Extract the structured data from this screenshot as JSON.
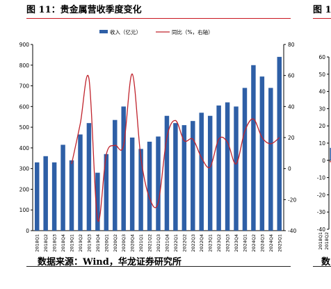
{
  "figure": {
    "title": "图 11：贵金属营收季度变化",
    "source": "数据来源：Wind，华龙证券研究所"
  },
  "next_figure": {
    "title_fragment": "图 1",
    "source_fragment": "数",
    "y_ticks": [
      "60",
      "50",
      "40",
      "30",
      "20",
      "10",
      "0",
      "-10",
      "-20",
      "-30",
      "-40"
    ],
    "x_ticks": [
      "2018Q1",
      "2018Q2"
    ],
    "bar_color": "#2e5fa6",
    "line_color": "#c0232c"
  },
  "chart_data": {
    "type": "bar+line",
    "categories": [
      "2018Q1",
      "2018Q2",
      "2018Q3",
      "2018Q4",
      "2019Q1",
      "2019Q2",
      "2019Q3",
      "2019Q4",
      "2020Q1",
      "2020Q2",
      "2020Q3",
      "2020Q4",
      "2021Q1",
      "2021Q2",
      "2021Q3",
      "2021Q4",
      "2022Q1",
      "2022Q2",
      "2022Q3",
      "2022Q4",
      "2023Q1",
      "2023Q2",
      "2023Q3",
      "2023Q4",
      "2024Q1",
      "2024Q2",
      "2024Q3",
      "2024Q4",
      "2025Q1"
    ],
    "series": [
      {
        "name": "收入（亿元）",
        "type": "bar",
        "axis": "left",
        "color": "#2e5fa6",
        "values": [
          330,
          360,
          330,
          415,
          340,
          465,
          520,
          280,
          370,
          535,
          600,
          450,
          395,
          430,
          455,
          555,
          520,
          510,
          530,
          570,
          555,
          605,
          620,
          600,
          690,
          800,
          745,
          690,
          840
        ]
      },
      {
        "name": "同比（%，右轴）",
        "type": "line",
        "axis": "right",
        "color": "#c0232c",
        "values": [
          null,
          null,
          null,
          null,
          3,
          29,
          58,
          -33,
          9,
          15,
          15,
          61,
          7,
          -19,
          -22,
          20,
          31,
          18,
          19,
          7,
          1,
          19,
          17,
          3,
          24,
          32,
          20,
          16,
          20
        ]
      }
    ],
    "left_axis": {
      "ylim": [
        0,
        900
      ],
      "ticks": [
        "0",
        "100",
        "200",
        "300",
        "400",
        "500",
        "600",
        "700",
        "800",
        "900"
      ]
    },
    "right_axis": {
      "ylim": [
        -40,
        80
      ],
      "ticks": [
        "-40",
        "-20",
        "0",
        "20",
        "40",
        "60",
        "80"
      ]
    },
    "legend_position": "top",
    "grid": false
  }
}
